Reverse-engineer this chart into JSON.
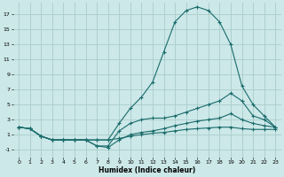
{
  "xlabel": "Humidex (Indice chaleur)",
  "bg_color": "#cce8e8",
  "grid_color": "#aacccc",
  "line_color": "#1a6b6b",
  "xlim": [
    -0.5,
    23.5
  ],
  "ylim": [
    -2,
    18.5
  ],
  "xticks": [
    0,
    1,
    2,
    3,
    4,
    5,
    6,
    7,
    8,
    9,
    10,
    11,
    12,
    13,
    14,
    15,
    16,
    17,
    18,
    19,
    20,
    21,
    22,
    23
  ],
  "yticks": [
    -1,
    1,
    3,
    5,
    7,
    9,
    11,
    13,
    15,
    17
  ],
  "line1_x": [
    0,
    1,
    2,
    3,
    4,
    5,
    6,
    7,
    8,
    9,
    10,
    11,
    12,
    13,
    14,
    15,
    16,
    17,
    18,
    19,
    20,
    21,
    22,
    23
  ],
  "line1_y": [
    2,
    1.8,
    0.8,
    0.3,
    0.3,
    0.3,
    0.3,
    0.3,
    0.3,
    2.5,
    4.5,
    6.0,
    8.0,
    12.0,
    16.0,
    17.5,
    18.0,
    17.5,
    16.0,
    13.0,
    7.5,
    5.0,
    3.5,
    2.0
  ],
  "line2_x": [
    0,
    1,
    2,
    3,
    4,
    5,
    6,
    7,
    8,
    9,
    10,
    11,
    12,
    13,
    14,
    15,
    16,
    17,
    18,
    19,
    20,
    21,
    22,
    23
  ],
  "line2_y": [
    2,
    1.8,
    0.8,
    0.3,
    0.3,
    0.3,
    0.3,
    -0.5,
    -0.5,
    1.5,
    2.5,
    3.0,
    3.2,
    3.2,
    3.5,
    4.0,
    4.5,
    5.0,
    5.5,
    6.5,
    5.5,
    3.5,
    3.0,
    2.0
  ],
  "line3_x": [
    0,
    1,
    2,
    3,
    4,
    5,
    6,
    7,
    8,
    9,
    10,
    11,
    12,
    13,
    14,
    15,
    16,
    17,
    18,
    19,
    20,
    21,
    22,
    23
  ],
  "line3_y": [
    2,
    1.8,
    0.8,
    0.3,
    0.3,
    0.3,
    0.3,
    -0.5,
    -0.7,
    0.3,
    1.0,
    1.3,
    1.5,
    1.8,
    2.2,
    2.5,
    2.8,
    3.0,
    3.2,
    3.8,
    3.0,
    2.5,
    2.2,
    2.0
  ],
  "line4_x": [
    0,
    1,
    2,
    3,
    4,
    5,
    6,
    7,
    8,
    9,
    10,
    11,
    12,
    13,
    14,
    15,
    16,
    17,
    18,
    19,
    20,
    21,
    22,
    23
  ],
  "line4_y": [
    2,
    1.8,
    0.8,
    0.3,
    0.3,
    0.3,
    0.3,
    0.3,
    0.3,
    0.5,
    0.8,
    1.0,
    1.2,
    1.3,
    1.5,
    1.7,
    1.8,
    1.9,
    2.0,
    2.0,
    1.8,
    1.7,
    1.7,
    1.7
  ]
}
